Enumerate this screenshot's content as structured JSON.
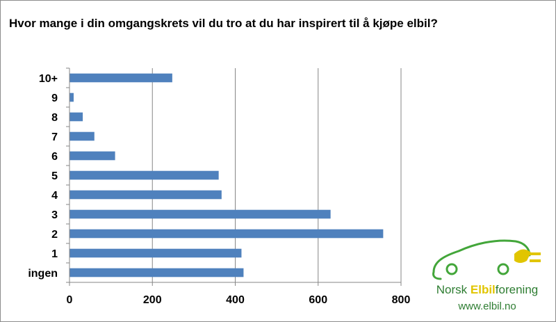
{
  "chart_data": {
    "type": "bar",
    "orientation": "horizontal",
    "title": "Hvor mange i din omgangskrets vil du tro at du har inspirert til å kjøpe elbil?",
    "categories": [
      "10+",
      "9",
      "8",
      "7",
      "6",
      "5",
      "4",
      "3",
      "2",
      "1",
      "ingen"
    ],
    "values": [
      248,
      10,
      32,
      60,
      110,
      360,
      367,
      630,
      757,
      415,
      420
    ],
    "xlim": [
      0,
      800
    ],
    "xticks": [
      0,
      200,
      400,
      600,
      800
    ],
    "grid": true,
    "bar_color": "#4f81bd"
  },
  "logo": {
    "name_part1": "Norsk ",
    "name_part2": "Elbil",
    "name_part3": "forening",
    "url": "www.elbil.no",
    "green": "#43a63a",
    "yellow": "#e1c500"
  }
}
